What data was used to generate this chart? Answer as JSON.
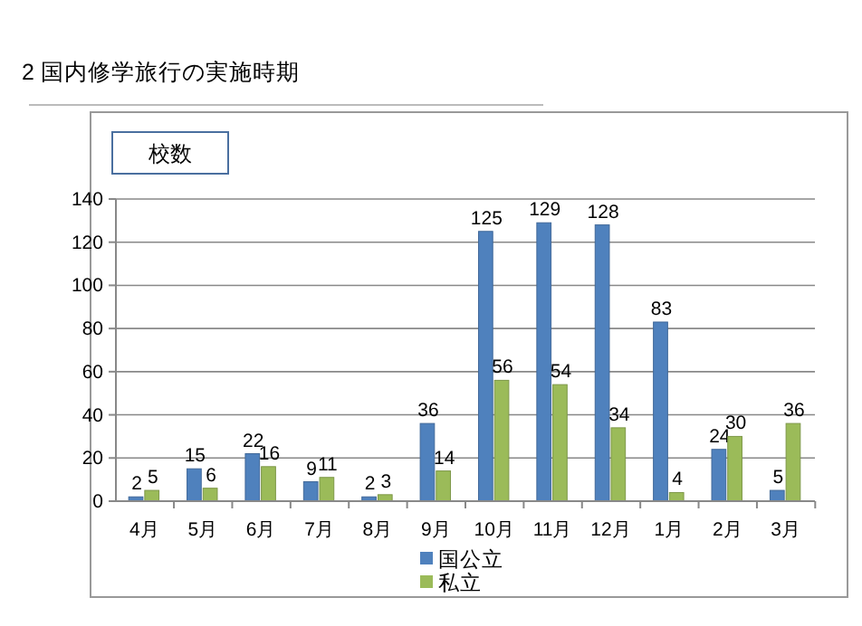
{
  "chart_data": {
    "type": "bar",
    "title": "2  国内修学旅行の実施時期",
    "ylabel": "校数",
    "categories": [
      "4月",
      "5月",
      "6月",
      "7月",
      "8月",
      "9月",
      "10月",
      "11月",
      "12月",
      "1月",
      "2月",
      "3月"
    ],
    "series": [
      {
        "name": "国公立",
        "color": "#4f81bd",
        "values": [
          2,
          15,
          22,
          9,
          2,
          36,
          125,
          129,
          128,
          83,
          24,
          5
        ]
      },
      {
        "name": "私立",
        "color": "#9bbb59",
        "values": [
          5,
          6,
          16,
          11,
          3,
          14,
          56,
          54,
          34,
          4,
          30,
          36
        ]
      }
    ],
    "ylim": [
      0,
      140
    ],
    "yticks": [
      0,
      20,
      40,
      60,
      80,
      100,
      120,
      140
    ],
    "grid": "y",
    "legend": "bottom",
    "data_labels": true
  }
}
